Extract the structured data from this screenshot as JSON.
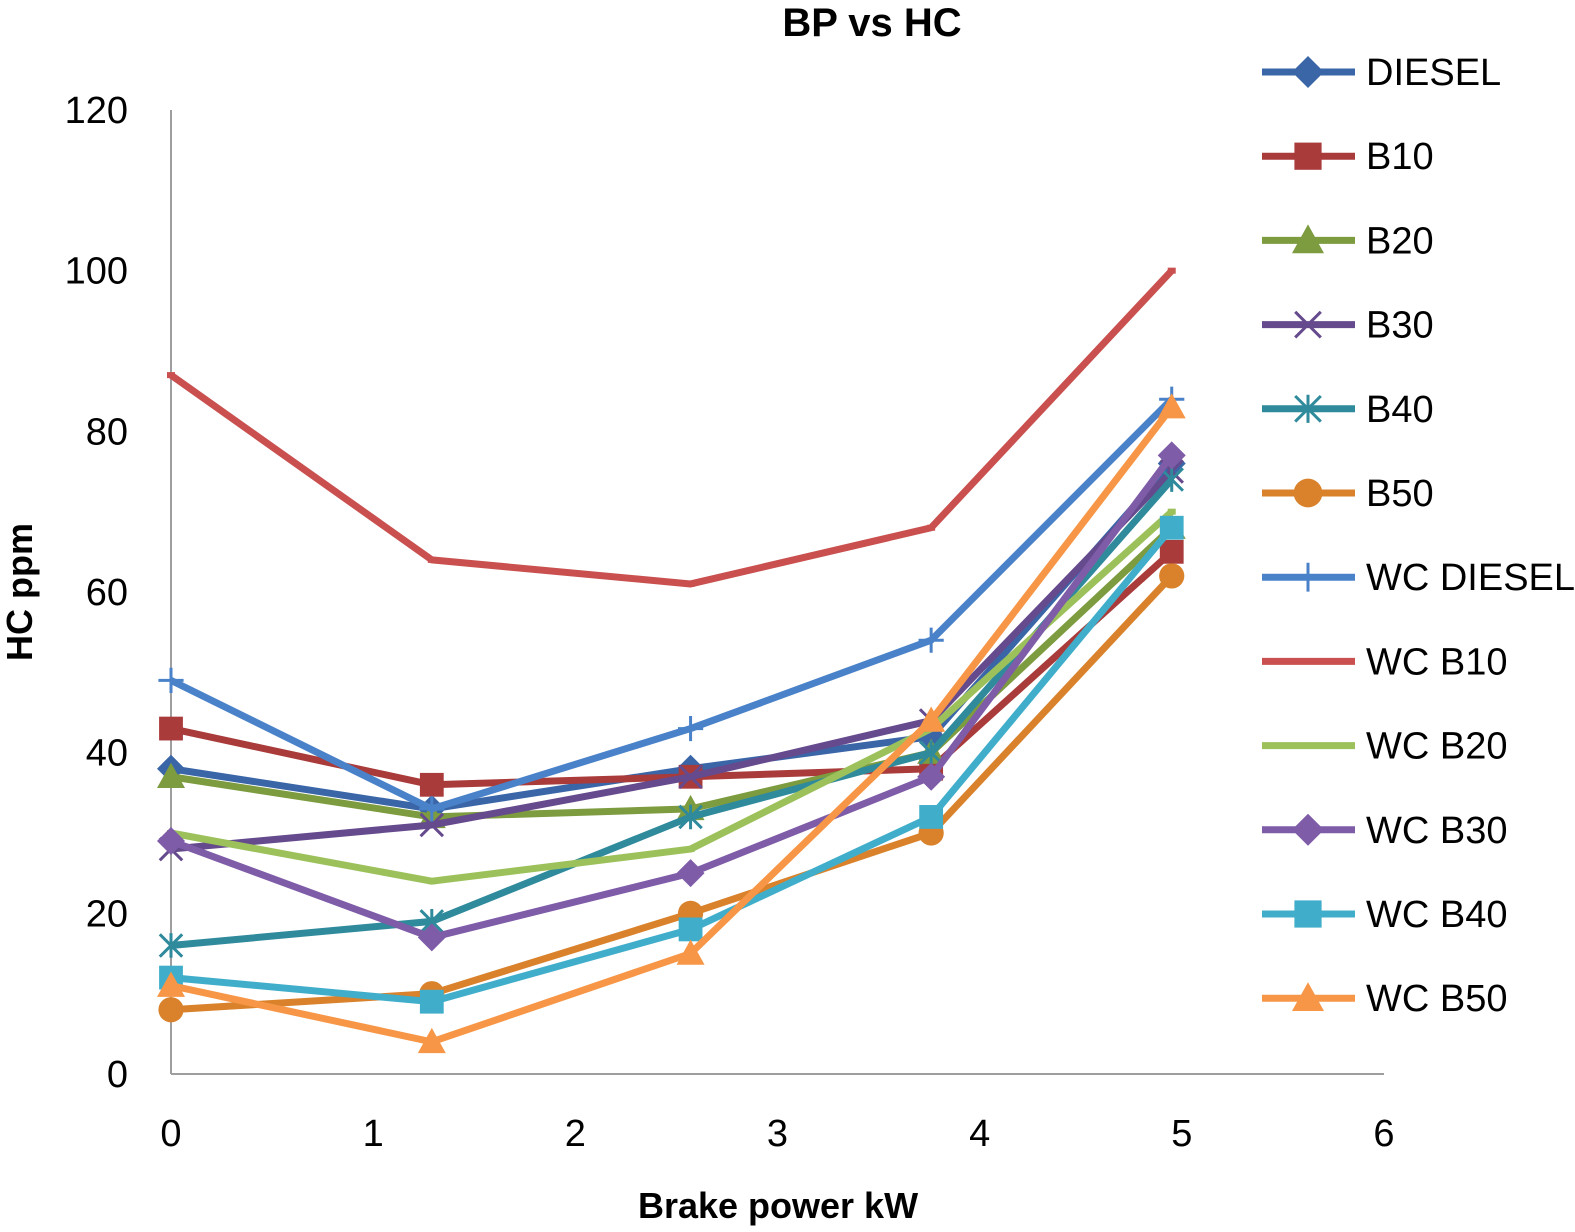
{
  "chart_data": {
    "type": "line",
    "title": "BP vs HC",
    "xlabel": "Brake power kW",
    "ylabel": "HC ppm",
    "xlim": [
      0,
      6
    ],
    "ylim": [
      0,
      120
    ],
    "x_ticks": [
      "0",
      "1",
      "2",
      "3",
      "4",
      "5",
      "6"
    ],
    "y_ticks": [
      "0",
      "20",
      "40",
      "60",
      "80",
      "100",
      "120"
    ],
    "x": [
      0,
      1.29,
      2.57,
      3.76,
      4.95
    ],
    "legend_position": "right",
    "series": [
      {
        "name": "DIESEL",
        "color": "#3A66A8",
        "marker": "diamond",
        "values": [
          38,
          33,
          38,
          42,
          76
        ]
      },
      {
        "name": "B10",
        "color": "#A93B3A",
        "marker": "square",
        "values": [
          43,
          36,
          37,
          38,
          65
        ]
      },
      {
        "name": "B20",
        "color": "#7D9B3F",
        "marker": "triangle",
        "values": [
          37,
          32,
          33,
          40,
          68
        ]
      },
      {
        "name": "B30",
        "color": "#654A8D",
        "marker": "x",
        "values": [
          28,
          31,
          37,
          44,
          75
        ]
      },
      {
        "name": "B40",
        "color": "#2F8A9C",
        "marker": "asterisk",
        "values": [
          16,
          19,
          32,
          40,
          74
        ]
      },
      {
        "name": "B50",
        "color": "#D9822B",
        "marker": "circle",
        "values": [
          8,
          10,
          20,
          30,
          62
        ]
      },
      {
        "name": "WC DIESEL",
        "color": "#4A82C9",
        "marker": "plus",
        "values": [
          49,
          33,
          43,
          54,
          84
        ]
      },
      {
        "name": "WC B10",
        "color": "#C9504E",
        "marker": "none",
        "values": [
          87,
          64,
          61,
          68,
          100
        ]
      },
      {
        "name": "WC B20",
        "color": "#9CC15B",
        "marker": "none",
        "values": [
          30,
          24,
          28,
          43,
          70
        ]
      },
      {
        "name": "WC B30",
        "color": "#7E5CA8",
        "marker": "diamond",
        "values": [
          29,
          17,
          25,
          37,
          77
        ]
      },
      {
        "name": "WC B40",
        "color": "#40AECA",
        "marker": "square",
        "values": [
          12,
          9,
          18,
          32,
          68
        ]
      },
      {
        "name": "WC B50",
        "color": "#F79646",
        "marker": "triangle",
        "values": [
          11,
          4,
          15,
          44,
          83
        ]
      }
    ]
  }
}
